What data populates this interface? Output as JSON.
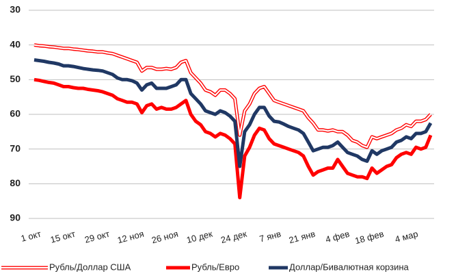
{
  "chart_data": {
    "type": "line",
    "categories": [
      "1 окт",
      null,
      null,
      null,
      null,
      null,
      null,
      "15 окт",
      null,
      null,
      null,
      null,
      null,
      null,
      "29 окт",
      null,
      null,
      null,
      null,
      null,
      null,
      "12 ноя",
      null,
      null,
      null,
      null,
      null,
      null,
      "26 ноя",
      null,
      null,
      null,
      null,
      null,
      null,
      "10 дек",
      null,
      null,
      null,
      null,
      null,
      null,
      "24 дек",
      null,
      null,
      null,
      null,
      null,
      null,
      "7 янв",
      null,
      null,
      null,
      null,
      null,
      null,
      "21 янв",
      null,
      null,
      null,
      null,
      null,
      null,
      "4 фев",
      null,
      null,
      null,
      null,
      null,
      null,
      "18 фев",
      null,
      null,
      null,
      null,
      null,
      null,
      "4 мар",
      null,
      null,
      null,
      null
    ],
    "series": [
      {
        "name": "Рубль/Доллар США",
        "color": "#ff0000",
        "style": "double",
        "values": [
          40,
          40.2,
          40.3,
          40.5,
          40.6,
          40.8,
          41,
          41,
          41.2,
          41.3,
          41.5,
          41.7,
          41.8,
          42,
          42,
          42.3,
          42.5,
          43,
          43.5,
          44,
          44.5,
          45,
          47.5,
          46.5,
          46.5,
          47,
          47,
          46.8,
          47,
          46.5,
          45,
          44.5,
          48,
          49.5,
          51,
          53,
          53.5,
          54.5,
          53,
          53,
          54,
          55.5,
          66,
          59,
          57,
          54,
          52.5,
          52,
          54,
          56,
          56.5,
          57,
          57.5,
          58,
          58.5,
          59,
          61,
          62.5,
          64.5,
          64.5,
          64.8,
          64.5,
          65,
          65,
          66,
          67.5,
          68,
          69,
          69.5,
          66.5,
          67,
          66.5,
          66,
          65.5,
          64.5,
          64,
          63,
          63.5,
          62,
          62,
          61.5,
          60
        ]
      },
      {
        "name": "Рубль/Евро",
        "color": "#ff0000",
        "style": "solid",
        "values": [
          50,
          50.2,
          50.5,
          50.8,
          51,
          51.5,
          52,
          52,
          52.3,
          52.5,
          52.5,
          52.8,
          53,
          53.2,
          53.5,
          54,
          54.5,
          55.5,
          56,
          56.5,
          56.5,
          57,
          59.5,
          57.5,
          57,
          58.5,
          58,
          58.5,
          58.5,
          58,
          57,
          56,
          60,
          62,
          63,
          65,
          65.5,
          66.5,
          65.5,
          66,
          67,
          68.5,
          84,
          72,
          69.5,
          66,
          64,
          64.5,
          67,
          68.5,
          69,
          69.5,
          70,
          70.5,
          71,
          72,
          75,
          77.5,
          76.5,
          76,
          75.5,
          75.5,
          73,
          75,
          77,
          77.5,
          78,
          78,
          78.5,
          75.5,
          77,
          76,
          75,
          74.5,
          72.5,
          71.5,
          71,
          71.5,
          69.5,
          70,
          69.5,
          66
        ]
      },
      {
        "name": "Доллар/Бивалютная корзина",
        "color": "#203864",
        "style": "solid",
        "values": [
          44.3,
          44.5,
          44.7,
          45,
          45.2,
          45.5,
          46,
          46,
          46.2,
          46.5,
          46.8,
          47,
          47.2,
          47.3,
          47.5,
          48,
          48.5,
          49.5,
          50,
          50,
          50.3,
          51,
          53,
          51.5,
          51,
          52.5,
          52.5,
          52.5,
          52,
          51.5,
          50,
          50,
          54,
          55.5,
          57,
          59,
          59.5,
          60,
          59,
          59.5,
          60.5,
          62,
          75,
          65,
          63,
          60,
          58,
          58,
          60.5,
          62,
          62.2,
          62.8,
          63.5,
          64,
          64.5,
          65.5,
          68,
          70.5,
          70,
          69.5,
          69.5,
          69,
          68,
          69.5,
          71,
          71.5,
          72,
          73,
          73.5,
          70.5,
          71.5,
          70.5,
          70,
          69.5,
          68,
          67.5,
          66.5,
          67,
          65.5,
          65.5,
          65,
          62.5
        ]
      }
    ],
    "ylim": [
      90,
      30
    ],
    "yticks": [
      30,
      40,
      50,
      60,
      70,
      80,
      90
    ],
    "grid": true,
    "legend": "bottom"
  }
}
